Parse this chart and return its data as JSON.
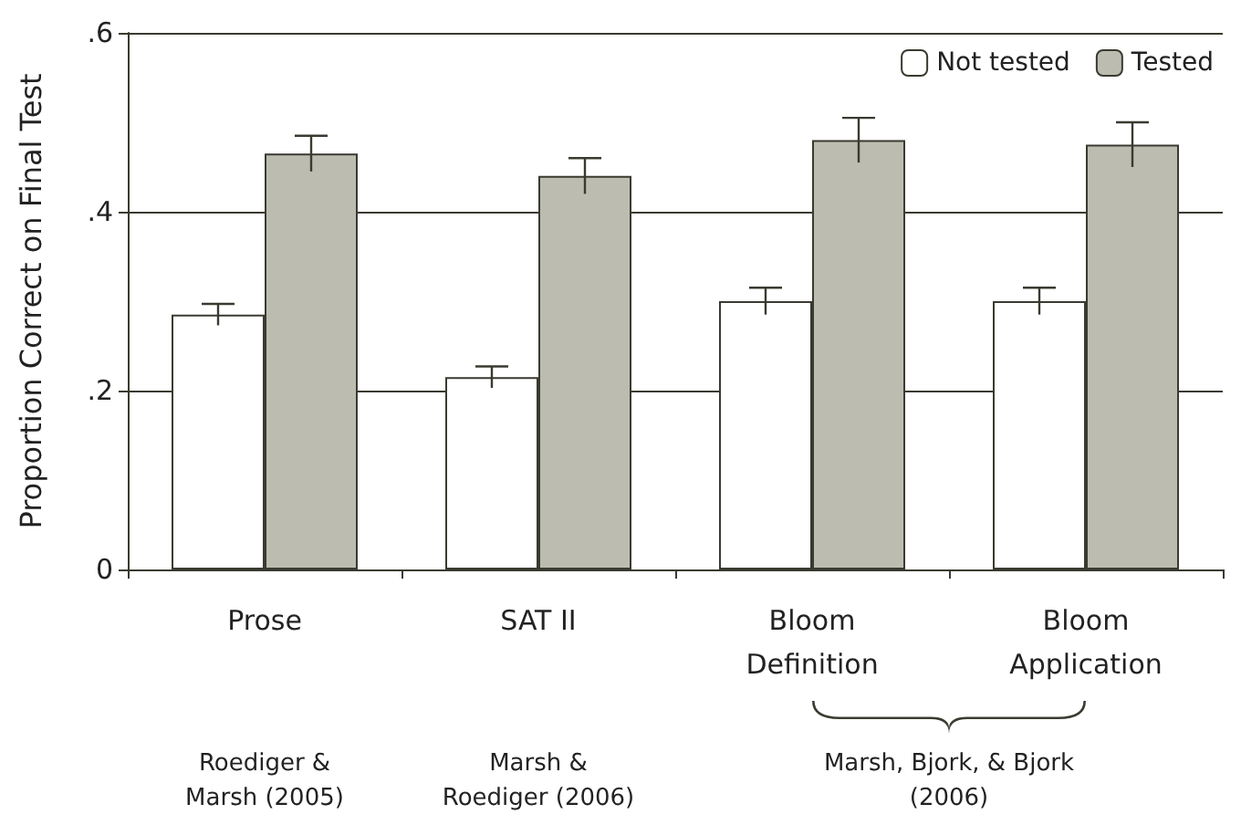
{
  "chart_data": {
    "type": "bar",
    "ylabel": "Proportion Correct on Final Test",
    "categories": [
      "Prose",
      "SAT II",
      "Bloom\nDefinition",
      "Bloom\nApplication"
    ],
    "series": [
      {
        "name": "Not tested",
        "color": "#ffffff",
        "values": [
          0.285,
          0.215,
          0.3,
          0.3
        ],
        "errors": [
          0.012,
          0.012,
          0.015,
          0.015
        ]
      },
      {
        "name": "Tested",
        "color": "#bcbcb0",
        "values": [
          0.465,
          0.44,
          0.48,
          0.475
        ],
        "errors": [
          0.02,
          0.02,
          0.025,
          0.025
        ]
      }
    ],
    "ylim": [
      0,
      0.6
    ],
    "yticks": [
      {
        "value": 0,
        "label": "0"
      },
      {
        "value": 0.2,
        "label": ".2"
      },
      {
        "value": 0.4,
        "label": ".4"
      },
      {
        "value": 0.6,
        "label": ".6"
      }
    ],
    "grid": "y",
    "legend": "top right",
    "annotations": [
      "Roediger &\nMarsh (2005)",
      "Marsh &\nRoediger (2006)",
      "Marsh, Bjork, & Bjork\n(2006)"
    ]
  }
}
